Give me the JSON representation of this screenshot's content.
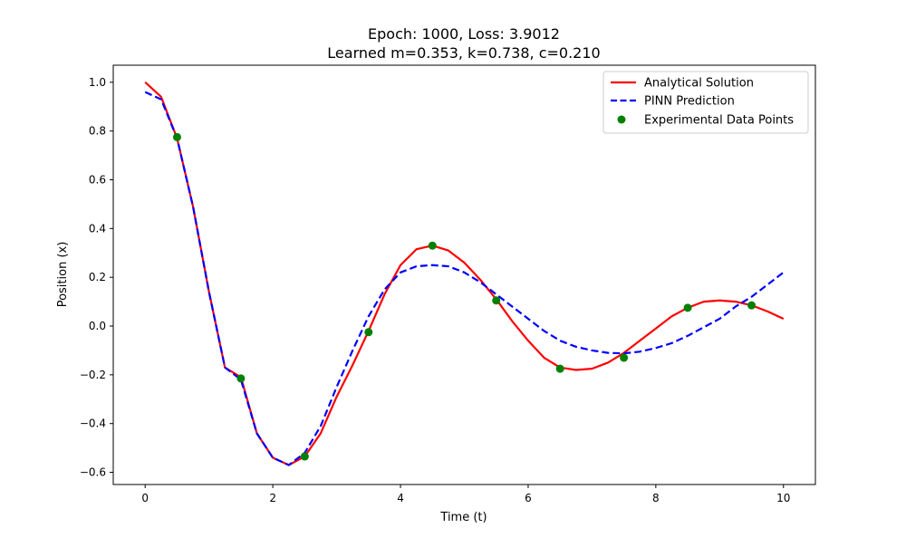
{
  "chart_data": {
    "type": "line",
    "title_line1": "Epoch: 1000, Loss: 3.9012",
    "title_line2": "Learned m=0.353, k=0.738, c=0.210",
    "xlabel": "Time (t)",
    "ylabel": "Position (x)",
    "xlim": [
      -0.5,
      10.5
    ],
    "ylim": [
      -0.65,
      1.07
    ],
    "x_ticks": [
      0,
      2,
      4,
      6,
      8,
      10
    ],
    "x_tick_labels": [
      "0",
      "2",
      "4",
      "6",
      "8",
      "10"
    ],
    "y_ticks": [
      -0.6,
      -0.4,
      -0.2,
      0.0,
      0.2,
      0.4,
      0.6,
      0.8,
      1.0
    ],
    "y_tick_labels": [
      "−0.6",
      "−0.4",
      "−0.2",
      "0.0",
      "0.2",
      "0.4",
      "0.6",
      "0.8",
      "1.0"
    ],
    "grid": false,
    "legend_position": "upper right",
    "series": [
      {
        "name": "Analytical Solution",
        "kind": "line",
        "style": "solid",
        "color": "#ff0000",
        "x": [
          0,
          0.25,
          0.5,
          0.75,
          1.0,
          1.25,
          1.5,
          1.75,
          2.0,
          2.25,
          2.5,
          2.75,
          3.0,
          3.25,
          3.5,
          3.75,
          4.0,
          4.25,
          4.5,
          4.75,
          5.0,
          5.25,
          5.5,
          5.75,
          6.0,
          6.25,
          6.5,
          6.75,
          7.0,
          7.25,
          7.5,
          7.75,
          8.0,
          8.25,
          8.5,
          8.75,
          9.0,
          9.25,
          9.5,
          9.75,
          10.0
        ],
        "y": [
          1.0,
          0.94,
          0.77,
          0.49,
          0.14,
          -0.17,
          -0.21,
          -0.44,
          -0.54,
          -0.57,
          -0.535,
          -0.44,
          -0.29,
          -0.16,
          -0.02,
          0.13,
          0.25,
          0.315,
          0.33,
          0.31,
          0.26,
          0.19,
          0.11,
          0.02,
          -0.06,
          -0.13,
          -0.17,
          -0.18,
          -0.175,
          -0.15,
          -0.11,
          -0.06,
          -0.01,
          0.04,
          0.075,
          0.1,
          0.105,
          0.1,
          0.085,
          0.06,
          0.03
        ]
      },
      {
        "name": "PINN Prediction",
        "kind": "line",
        "style": "dashed",
        "color": "#0000ff",
        "x": [
          0,
          0.25,
          0.5,
          0.75,
          1.0,
          1.25,
          1.5,
          1.75,
          2.0,
          2.25,
          2.5,
          2.75,
          3.0,
          3.25,
          3.5,
          3.75,
          4.0,
          4.25,
          4.5,
          4.75,
          5.0,
          5.25,
          5.5,
          5.75,
          6.0,
          6.25,
          6.5,
          6.75,
          7.0,
          7.25,
          7.5,
          7.75,
          8.0,
          8.25,
          8.5,
          8.75,
          9.0,
          9.25,
          9.5,
          9.75,
          10.0
        ],
        "y": [
          0.96,
          0.93,
          0.77,
          0.49,
          0.14,
          -0.17,
          -0.22,
          -0.44,
          -0.54,
          -0.57,
          -0.52,
          -0.41,
          -0.25,
          -0.1,
          0.04,
          0.15,
          0.22,
          0.245,
          0.25,
          0.245,
          0.22,
          0.18,
          0.13,
          0.08,
          0.03,
          -0.02,
          -0.06,
          -0.085,
          -0.1,
          -0.11,
          -0.112,
          -0.105,
          -0.09,
          -0.07,
          -0.04,
          -0.005,
          0.03,
          0.08,
          0.12,
          0.17,
          0.22
        ]
      },
      {
        "name": "Experimental Data Points",
        "kind": "scatter",
        "color": "#008000",
        "x": [
          0.5,
          1.5,
          2.5,
          3.5,
          4.5,
          5.5,
          6.5,
          7.5,
          8.5,
          9.5
        ],
        "y": [
          0.775,
          -0.215,
          -0.535,
          -0.025,
          0.33,
          0.105,
          -0.175,
          -0.13,
          0.075,
          0.085
        ]
      }
    ]
  }
}
